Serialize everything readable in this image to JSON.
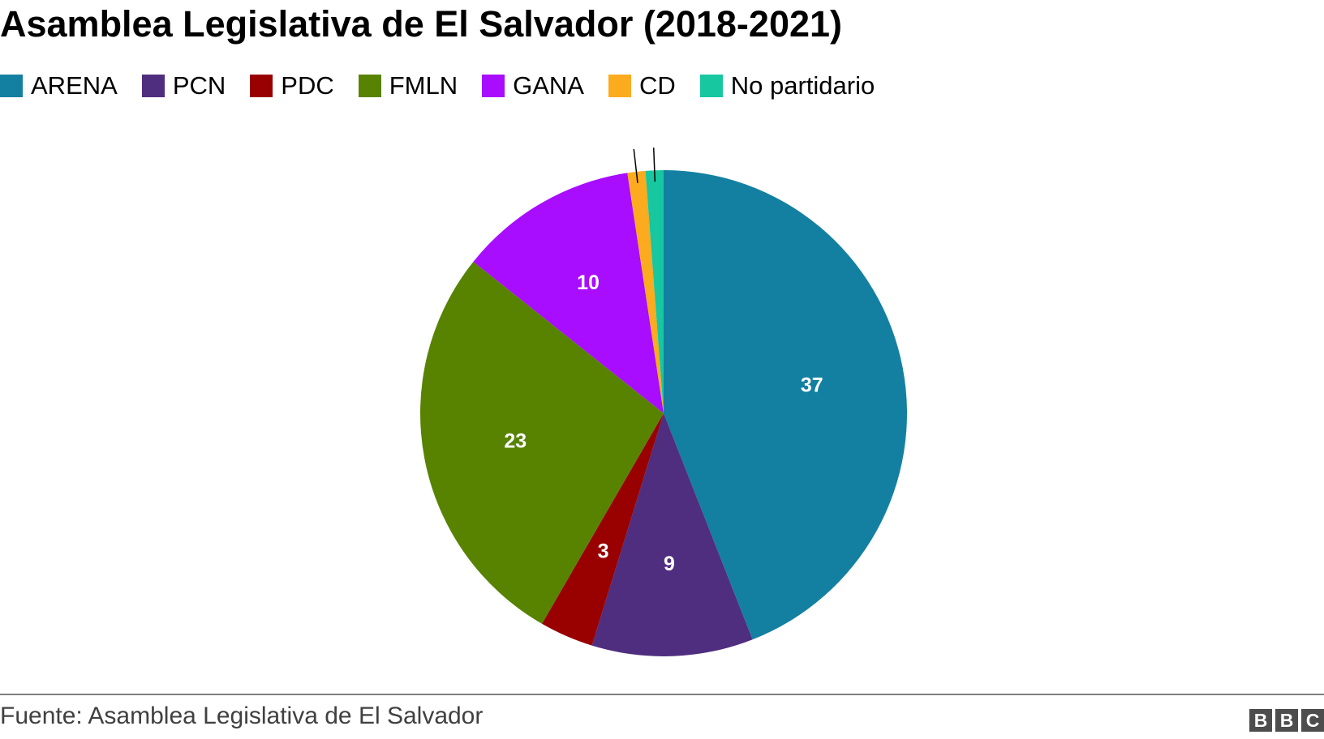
{
  "header": {
    "title": "Asamblea Legislativa de El Salvador (2018-2021)"
  },
  "chart_data": {
    "type": "pie",
    "title": "Asamblea Legislativa de El Salvador (2018-2021)",
    "legend_position": "top",
    "start_angle_deg": 0,
    "direction": "clockwise",
    "slices": [
      {
        "label": "ARENA",
        "value": 37,
        "color": "#1380a1",
        "show_label": true
      },
      {
        "label": "PCN",
        "value": 9,
        "color": "#4f2d7f",
        "show_label": true
      },
      {
        "label": "PDC",
        "value": 3,
        "color": "#990000",
        "show_label": true
      },
      {
        "label": "FMLN",
        "value": 23,
        "color": "#588300",
        "show_label": true
      },
      {
        "label": "GANA",
        "value": 10,
        "color": "#a80dff",
        "show_label": true
      },
      {
        "label": "CD",
        "value": 1,
        "color": "#fcaa1e",
        "show_label": false
      },
      {
        "label": "No partidario",
        "value": 1,
        "color": "#16c79f",
        "show_label": false
      }
    ]
  },
  "footer": {
    "source": "Fuente: Asamblea Legislativa de El Salvador",
    "logo_letters": [
      "B",
      "B",
      "C"
    ]
  }
}
